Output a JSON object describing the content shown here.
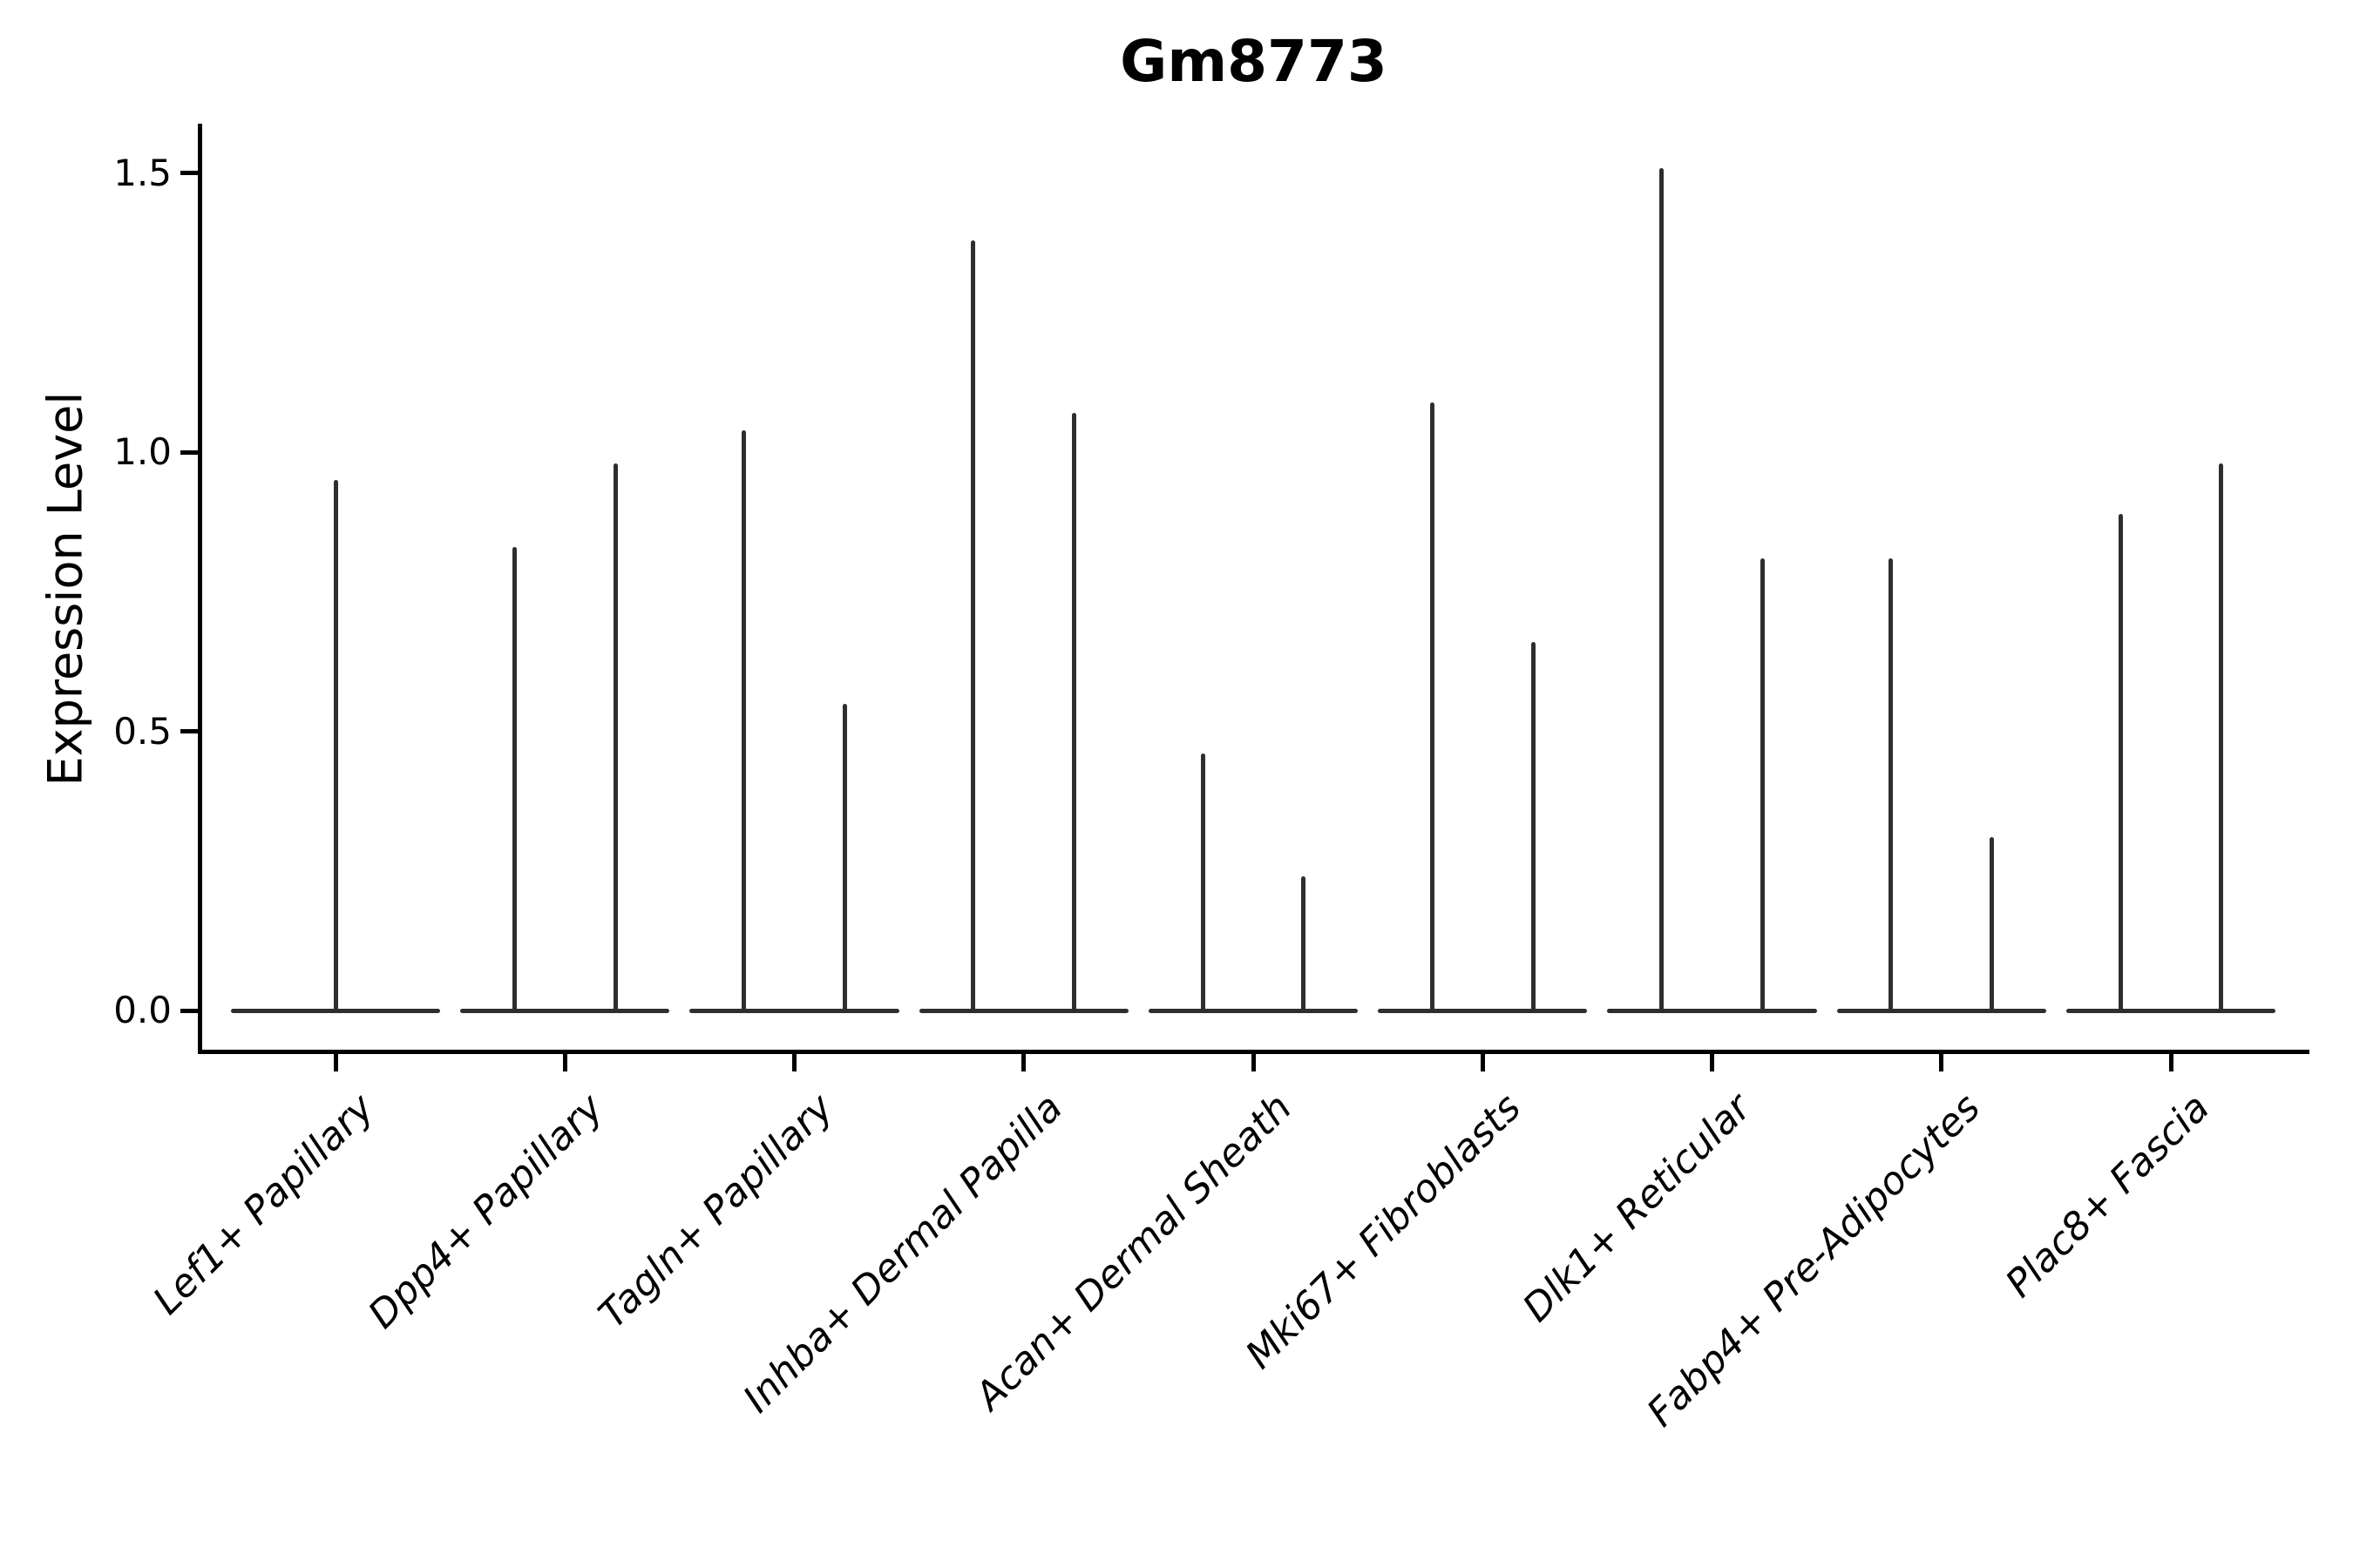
{
  "figure": {
    "title": "Gm8773",
    "y_axis_label": "Expression Level"
  },
  "chart_data": {
    "type": "violin",
    "title": "Gm8773",
    "xlabel": "",
    "ylabel": "Expression Level",
    "grid": false,
    "legend_position": "none",
    "ylim": [
      -0.08,
      1.59
    ],
    "ytick_values": [
      0,
      0.5,
      1,
      1.5
    ],
    "ytick_labels": [
      "0.0",
      "0.5",
      "1.0",
      "1.5"
    ],
    "categories": [
      "Lef1+ Papillary",
      "Dpp4+ Papillary",
      "Tagln+ Papillary",
      "Inhba+ Dermal Papilla",
      "Acan+ Dermal Sheath",
      "Mki67+ Fibroblasts",
      "Dlk1+ Reticular",
      "Fabp4+ Pre-Adipocytes",
      "Plac8+ Fascia"
    ],
    "violins": [
      {
        "category": "Lef1+ Papillary",
        "baseline_value": 0,
        "baseline_halfwidth": 0.456,
        "spikes": [
          {
            "offset": 0.0,
            "peak": 0.95
          }
        ]
      },
      {
        "category": "Dpp4+ Papillary",
        "baseline_value": 0,
        "baseline_halfwidth": 0.456,
        "spikes": [
          {
            "offset": -0.22,
            "peak": 0.83
          },
          {
            "offset": 0.22,
            "peak": 0.98
          }
        ]
      },
      {
        "category": "Tagln+ Papillary",
        "baseline_value": 0,
        "baseline_halfwidth": 0.456,
        "spikes": [
          {
            "offset": -0.22,
            "peak": 1.04
          },
          {
            "offset": 0.22,
            "peak": 0.55
          }
        ]
      },
      {
        "category": "Inhba+ Dermal Papilla",
        "baseline_value": 0,
        "baseline_halfwidth": 0.456,
        "spikes": [
          {
            "offset": -0.22,
            "peak": 1.38
          },
          {
            "offset": 0.22,
            "peak": 1.07
          }
        ]
      },
      {
        "category": "Acan+ Dermal Sheath",
        "baseline_value": 0,
        "baseline_halfwidth": 0.456,
        "spikes": [
          {
            "offset": -0.22,
            "peak": 0.46
          },
          {
            "offset": 0.22,
            "peak": 0.24
          }
        ]
      },
      {
        "category": "Mki67+ Fibroblasts",
        "baseline_value": 0,
        "baseline_halfwidth": 0.456,
        "spikes": [
          {
            "offset": -0.22,
            "peak": 1.09
          },
          {
            "offset": 0.22,
            "peak": 0.66
          }
        ]
      },
      {
        "category": "Dlk1+ Reticular",
        "baseline_value": 0,
        "baseline_halfwidth": 0.456,
        "spikes": [
          {
            "offset": -0.22,
            "peak": 1.51
          },
          {
            "offset": 0.22,
            "peak": 0.81
          }
        ]
      },
      {
        "category": "Fabp4+ Pre-Adipocytes",
        "baseline_value": 0,
        "baseline_halfwidth": 0.456,
        "spikes": [
          {
            "offset": -0.22,
            "peak": 0.81
          },
          {
            "offset": 0.22,
            "peak": 0.31
          }
        ]
      },
      {
        "category": "Plac8+ Fascia",
        "baseline_value": 0,
        "baseline_halfwidth": 0.456,
        "spikes": [
          {
            "offset": -0.22,
            "peak": 0.89
          },
          {
            "offset": 0.22,
            "peak": 0.98
          }
        ]
      }
    ],
    "style": {
      "violin_line_color": "#2e2e2e",
      "axis_color": "#000000",
      "background": "#ffffff"
    }
  }
}
